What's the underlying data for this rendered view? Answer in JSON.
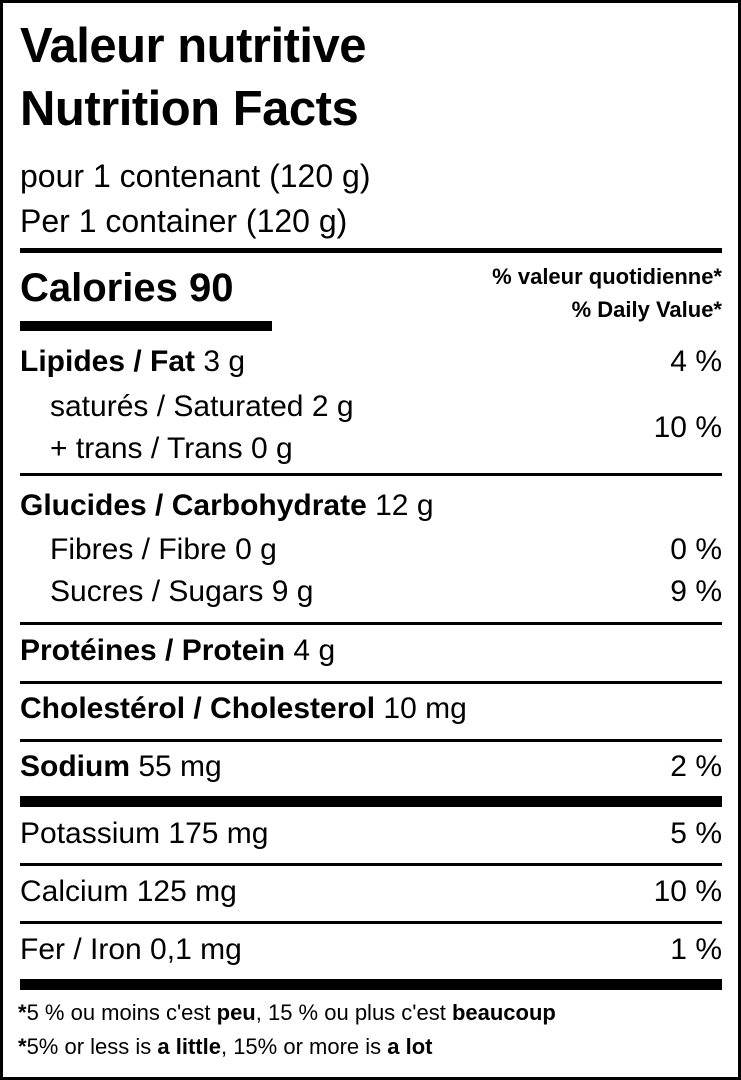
{
  "title_fr": "Valeur nutritive",
  "title_en": "Nutrition Facts",
  "serving_fr": "pour 1 contenant (120 g)",
  "serving_en": "Per 1 container (120 g)",
  "calories_label": "Calories",
  "calories_value": "90",
  "dv_header_fr": "% valeur quotidienne*",
  "dv_header_en": "% Daily Value*",
  "nutrients": {
    "fat": {
      "label": "Lipides / Fat",
      "amount": "3 g",
      "dv": "4 %"
    },
    "saturated": {
      "label": "saturés / Saturated",
      "amount": "2 g"
    },
    "trans": {
      "label": "+ trans / Trans",
      "amount": "0 g"
    },
    "sat_trans_dv": "10 %",
    "carb": {
      "label": "Glucides / Carbohydrate",
      "amount": "12 g"
    },
    "fibre": {
      "label": "Fibres / Fibre",
      "amount": "0 g",
      "dv": "0 %"
    },
    "sugars": {
      "label": "Sucres / Sugars",
      "amount": "9 g",
      "dv": "9 %"
    },
    "protein": {
      "label": "Protéines / Protein",
      "amount": "4 g"
    },
    "cholesterol": {
      "label": "Cholestérol / Cholesterol",
      "amount": "10 mg"
    },
    "sodium": {
      "label": "Sodium",
      "amount": "55 mg",
      "dv": "2 %"
    },
    "potassium": {
      "label": "Potassium",
      "amount": "175 mg",
      "dv": "5 %"
    },
    "calcium": {
      "label": "Calcium",
      "amount": "125 mg",
      "dv": "10 %"
    },
    "iron": {
      "label": "Fer / Iron",
      "amount": "0,1 mg",
      "dv": "1 %"
    }
  },
  "footnote_fr": {
    "star": "*",
    "a": "5 % ou moins c'est ",
    "b1": "peu",
    "c": ", 15 % ou plus c'est ",
    "b2": "beaucoup"
  },
  "footnote_en": {
    "star": "*",
    "a": "5% or less is ",
    "b1": "a little",
    "c": ", 15% or more is ",
    "b2": "a lot"
  }
}
